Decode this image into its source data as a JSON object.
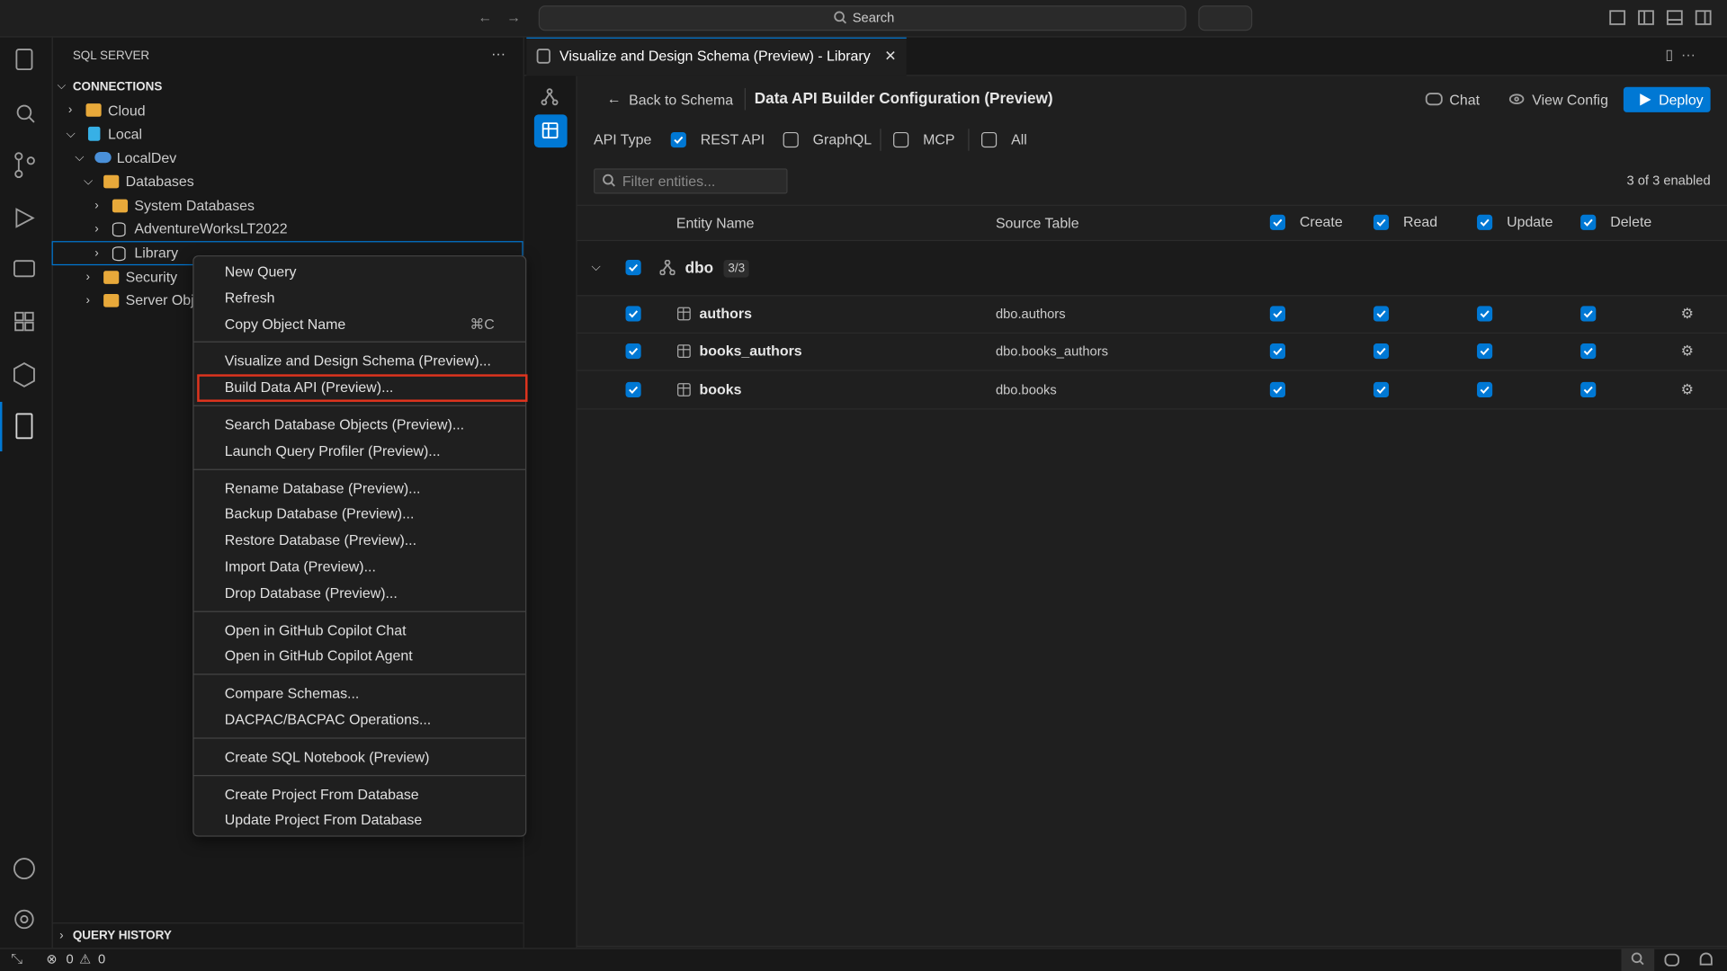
{
  "title_bar": {
    "search": "Search"
  },
  "sidebar": {
    "title": "SQL SERVER",
    "connections": "CONNECTIONS",
    "tree": [
      "Cloud",
      "Local",
      "LocalDev",
      "Databases",
      "System Databases",
      "AdventureWorksLT2022",
      "Library",
      "Security",
      "Server Obj"
    ],
    "query_history": "QUERY HISTORY"
  },
  "context_menu": {
    "groups": [
      [
        {
          "label": "New Query"
        },
        {
          "label": "Refresh"
        },
        {
          "label": "Copy Object Name",
          "shortcut": "⌘C"
        }
      ],
      [
        {
          "label": "Visualize and Design Schema (Preview)..."
        },
        {
          "label": "Build Data API (Preview)..."
        }
      ],
      [
        {
          "label": "Search Database Objects (Preview)..."
        },
        {
          "label": "Launch Query Profiler (Preview)..."
        }
      ],
      [
        {
          "label": "Rename Database (Preview)..."
        },
        {
          "label": "Backup Database (Preview)..."
        },
        {
          "label": "Restore Database (Preview)..."
        },
        {
          "label": "Import Data (Preview)..."
        },
        {
          "label": "Drop Database (Preview)..."
        }
      ],
      [
        {
          "label": "Open in GitHub Copilot Chat"
        },
        {
          "label": "Open in GitHub Copilot Agent"
        }
      ],
      [
        {
          "label": "Compare Schemas..."
        },
        {
          "label": "DACPAC/BACPAC Operations..."
        }
      ],
      [
        {
          "label": "Create SQL Notebook (Preview)"
        }
      ],
      [
        {
          "label": "Create Project From Database"
        },
        {
          "label": "Update Project From Database"
        }
      ]
    ]
  },
  "editor": {
    "tab": "Visualize and Design Schema (Preview) - Library",
    "back": "Back to Schema",
    "heading": "Data API Builder Configuration (Preview)",
    "chat": "Chat",
    "view_config": "View Config",
    "deploy": "Deploy",
    "api_type_label": "API Type",
    "api_types": [
      {
        "label": "REST API",
        "checked": true
      },
      {
        "label": "GraphQL",
        "checked": false
      },
      {
        "label": "MCP",
        "checked": false
      },
      {
        "label": "All",
        "checked": false
      }
    ],
    "filter_placeholder": "Filter entities...",
    "enabled_count": "3 of 3 enabled",
    "columns": {
      "entity": "Entity Name",
      "source": "Source Table",
      "create": "Create",
      "read": "Read",
      "update": "Update",
      "delete": "Delete"
    },
    "schema": {
      "name": "dbo",
      "count": "3/3"
    },
    "rows": [
      {
        "entity": "authors",
        "source": "dbo.authors"
      },
      {
        "entity": "books_authors",
        "source": "dbo.books_authors"
      },
      {
        "entity": "books",
        "source": "dbo.books"
      }
    ]
  },
  "status_bar": {
    "errors": "0",
    "warnings": "0"
  }
}
